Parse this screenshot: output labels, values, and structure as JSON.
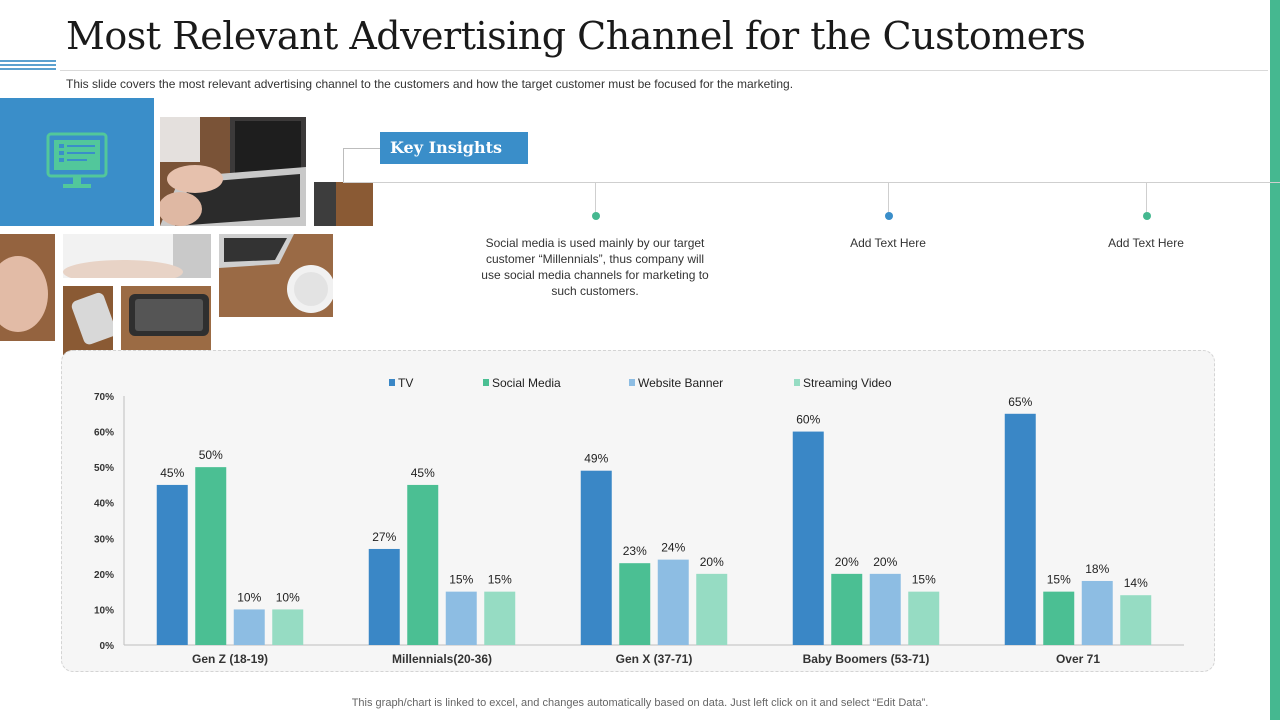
{
  "title": "Most Relevant Advertising Channel for the Customers",
  "subtitle": "This slide covers the most relevant  advertising  channel to the customers and how the target customer must be focused for the marketing.",
  "key_insights_label": "Key Insights",
  "insights": [
    {
      "text": "Social media is used mainly by our target  customer “Millennials”, thus company will use social media channels for marketing to such customers.",
      "dot_color": "#45b890"
    },
    {
      "text": "Add Text Here",
      "dot_color": "#3a8ec9"
    },
    {
      "text": "Add Text Here",
      "dot_color": "#45b890"
    }
  ],
  "footnote": "This graph/chart is linked to excel,  and changes automatically based on data. Just left click on it and select “Edit Data”.",
  "icons": {
    "computer": "monitor-checklist-icon"
  },
  "colors": {
    "accent_blue": "#3a8ec9",
    "accent_green": "#45b890"
  },
  "chart_data": {
    "type": "bar",
    "categories": [
      "Gen Z (18-19)",
      "Millennials(20-36)",
      "Gen X (37-71)",
      "Baby Boomers (53-71)",
      "Over 71"
    ],
    "series": [
      {
        "name": "TV",
        "color": "#3a87c6",
        "values": [
          45,
          27,
          49,
          60,
          65
        ]
      },
      {
        "name": "Social Media",
        "color": "#4bbf93",
        "values": [
          50,
          45,
          23,
          20,
          15
        ]
      },
      {
        "name": "Website Banner",
        "color": "#8dbde3",
        "values": [
          10,
          15,
          24,
          20,
          18
        ]
      },
      {
        "name": "Streaming Video",
        "color": "#96dcc3",
        "values": [
          10,
          15,
          20,
          15,
          14
        ]
      }
    ],
    "y_ticks": [
      "0%",
      "10%",
      "20%",
      "30%",
      "40%",
      "50%",
      "60%",
      "70%"
    ],
    "ylim": [
      0,
      70
    ],
    "data_labels": [
      [
        "45%",
        "27%",
        "49%",
        "60%",
        "65%"
      ],
      [
        "50%",
        "45%",
        "23%",
        "20%",
        "15%"
      ],
      [
        "10%",
        "15%",
        "24%",
        "20%",
        "18%"
      ],
      [
        "10%",
        "15%",
        "20%",
        "15%",
        "14%"
      ]
    ],
    "legend_position": "top",
    "grid": false
  }
}
